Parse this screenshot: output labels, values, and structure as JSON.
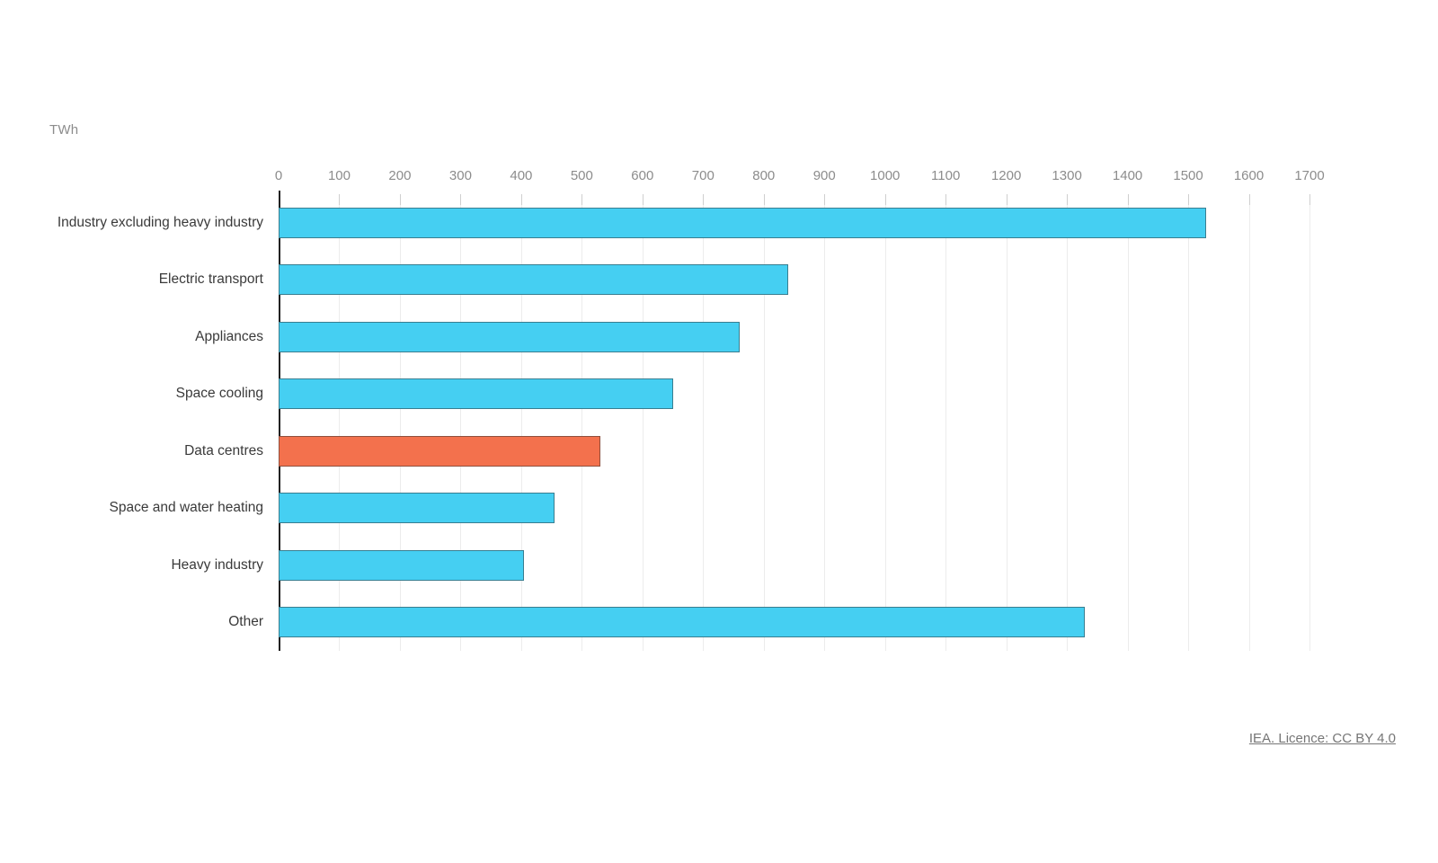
{
  "page": {
    "background": "#ffffff"
  },
  "chart_data": {
    "type": "bar",
    "orientation": "horizontal",
    "title": "",
    "unit_label": "TWh",
    "categories": [
      "Industry excluding heavy industry",
      "Electric transport",
      "Appliances",
      "Space cooling",
      "Data centres",
      "Space and water heating",
      "Heavy industry",
      "Other"
    ],
    "values": [
      1530,
      840,
      760,
      650,
      530,
      455,
      405,
      1330
    ],
    "highlighted_category": "Data centres",
    "xlabel": "",
    "ylabel": "",
    "xlim": [
      0,
      1700
    ],
    "x_ticks": [
      0,
      100,
      200,
      300,
      400,
      500,
      600,
      700,
      800,
      900,
      1000,
      1100,
      1200,
      1300,
      1400,
      1500,
      1600,
      1700
    ],
    "grid": "vertical",
    "legend": "none",
    "colors": {
      "bar_fill": "#45CFF2",
      "highlight_fill": "#F3714D",
      "bar_border": "rgba(45,45,45,0.5)",
      "gridline": "#ECECEC",
      "tick_mark": "#CFCFCF",
      "axis_line": "#222222",
      "tick_label_text": "#8C8C8C",
      "category_label_text": "#3A3A3A",
      "unit_label_text": "#8C8C8C"
    }
  },
  "footer": {
    "attribution_link": "IEA. Licence: CC BY 4.0",
    "link_color": "#767676"
  }
}
